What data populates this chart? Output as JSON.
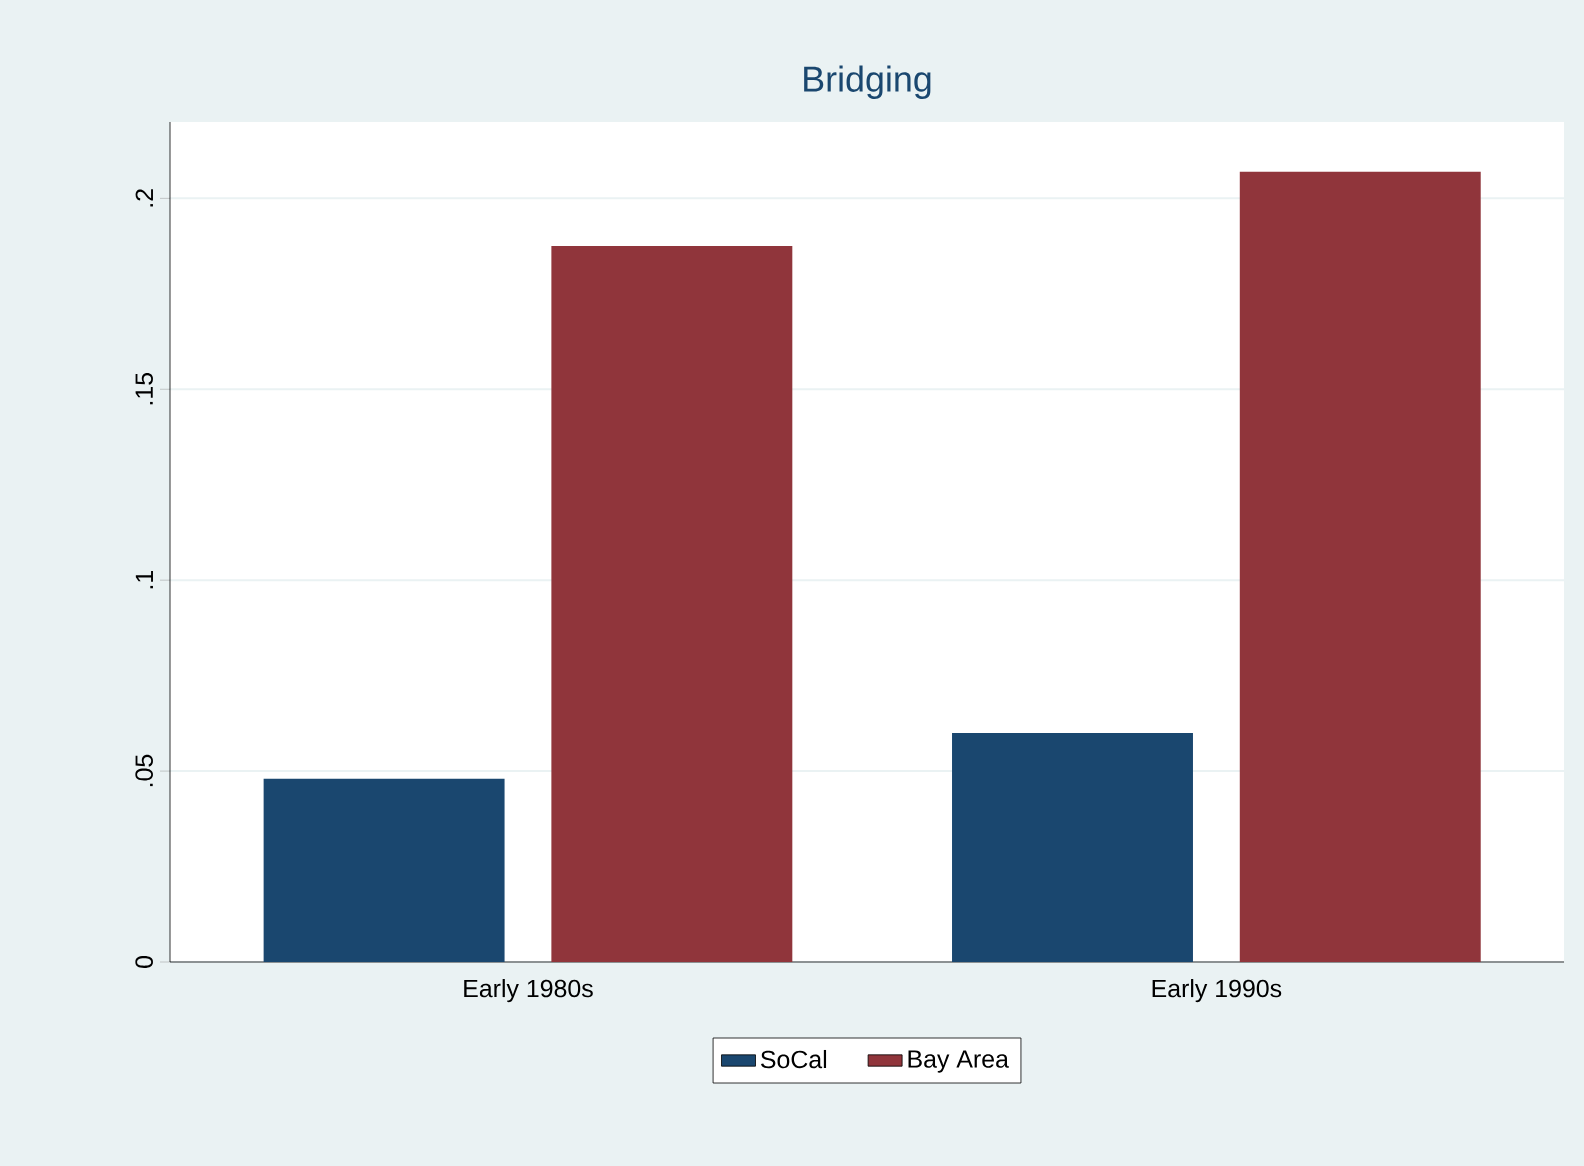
{
  "chart_data": {
    "type": "bar",
    "title": "Bridging",
    "categories": [
      "Early 1980s",
      "Early 1990s"
    ],
    "series": [
      {
        "name": "SoCal",
        "color": "#1a476f",
        "values": [
          0.048,
          0.06
        ]
      },
      {
        "name": "Bay Area",
        "color": "#90353b",
        "values": [
          0.1875,
          0.207
        ]
      }
    ],
    "ylim": [
      0,
      0.22
    ],
    "yticks": [
      0,
      {
        "value": 0.05,
        "label": ".05"
      },
      {
        "value": 0.1,
        "label": ".1"
      },
      {
        "value": 0.15,
        "label": ".15"
      },
      {
        "value": 0.2,
        "label": ".2"
      }
    ],
    "grid": "y",
    "legend": "bottom"
  }
}
